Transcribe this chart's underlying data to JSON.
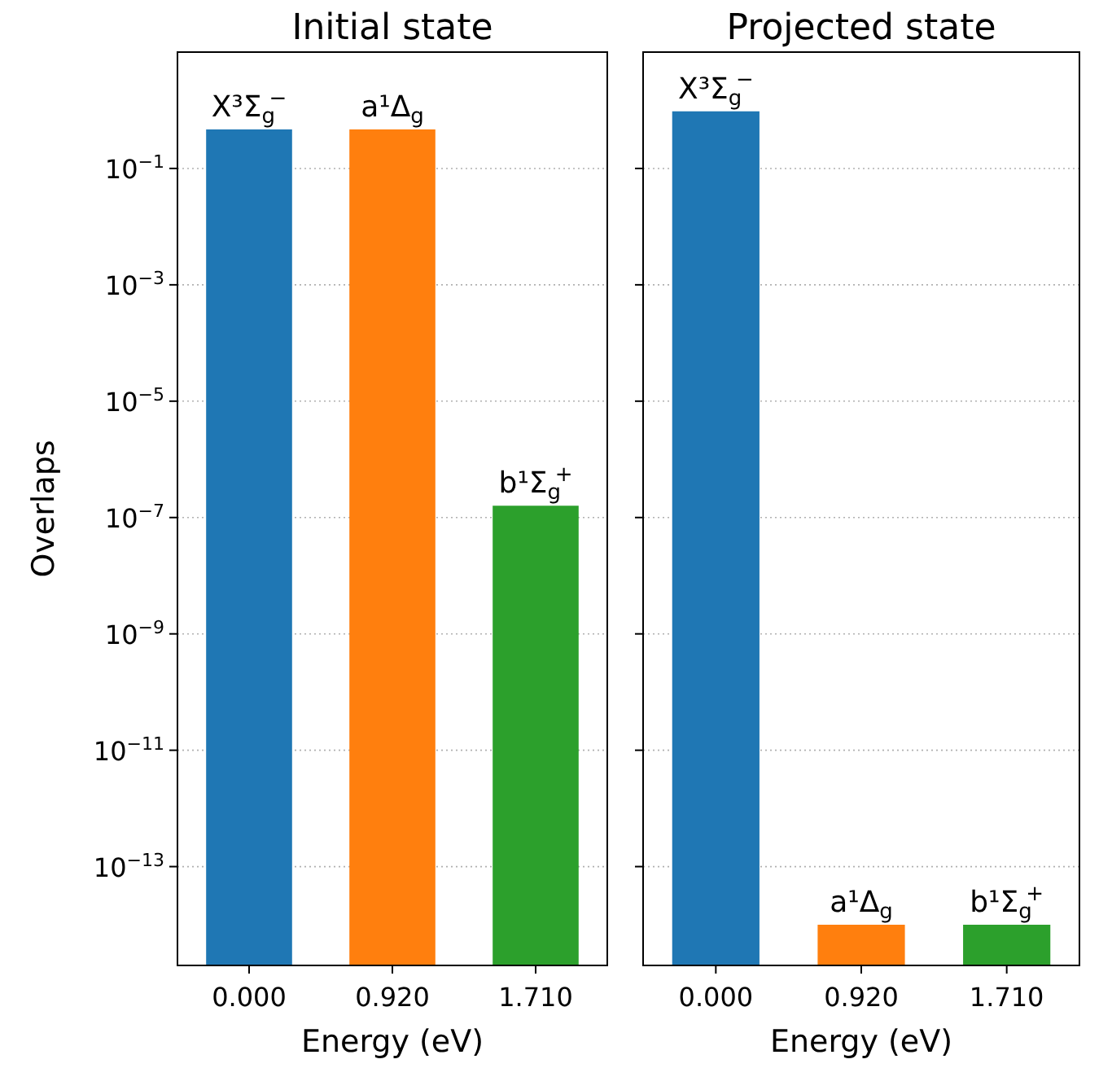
{
  "chart_data": [
    {
      "type": "bar",
      "title": "Initial state",
      "xlabel": "Energy (eV)",
      "ylabel": "Overlaps",
      "categories": [
        "0.000",
        "0.920",
        "1.710"
      ],
      "values": [
        0.47,
        0.47,
        1.6e-07
      ],
      "colors": [
        "#1f77b4",
        "#ff7f0e",
        "#2ca02c"
      ],
      "log": true,
      "ylim": [
        2e-15,
        10
      ],
      "yticks": [
        {
          "value": 0.1,
          "label": "10$^{−1}$"
        },
        {
          "value": 0.001,
          "label": "10$^{−3}$"
        },
        {
          "value": 1e-05,
          "label": "10$^{−5}$"
        },
        {
          "value": 1e-07,
          "label": "10$^{−7}$"
        },
        {
          "value": 1e-09,
          "label": "10$^{−9}$"
        },
        {
          "value": 1e-11,
          "label": "10$^{−11}$"
        },
        {
          "value": 1e-13,
          "label": "10$^{−13}$"
        }
      ],
      "grid": "y",
      "legend": false,
      "annotations": [
        {
          "text": "X³Σ$_{g}$$^{−}$",
          "x": "0.000",
          "y": 0.47
        },
        {
          "text": "a¹Δ$_{g}$",
          "x": "0.920",
          "y": 0.47
        },
        {
          "text": "b¹Σ$_{g}$$^{+}$",
          "x": "1.710",
          "y": 1.6e-07
        }
      ]
    },
    {
      "type": "bar",
      "title": "Projected state",
      "xlabel": "Energy (eV)",
      "categories": [
        "0.000",
        "0.920",
        "1.710"
      ],
      "values": [
        0.96,
        1e-14,
        1e-14
      ],
      "colors": [
        "#1f77b4",
        "#ff7f0e",
        "#2ca02c"
      ],
      "log": true,
      "ylim": [
        2e-15,
        10
      ],
      "yticks": [
        {
          "value": 0.1,
          "label": null
        },
        {
          "value": 0.001,
          "label": null
        },
        {
          "value": 1e-05,
          "label": null
        },
        {
          "value": 1e-07,
          "label": null
        },
        {
          "value": 1e-09,
          "label": null
        },
        {
          "value": 1e-11,
          "label": null
        },
        {
          "value": 1e-13,
          "label": null
        }
      ],
      "grid": "y",
      "legend": false,
      "tick_labels": "x",
      "annotations": [
        {
          "text": "X³Σ$_{g}$$^{−}$",
          "x": "0.000",
          "y": 0.96
        },
        {
          "text": "a¹Δ$_{g}$",
          "x": "0.920",
          "y": 1e-14
        },
        {
          "text": "b¹Σ$_{g}$$^{+}$",
          "x": "1.710",
          "y": 1e-14
        }
      ]
    }
  ]
}
